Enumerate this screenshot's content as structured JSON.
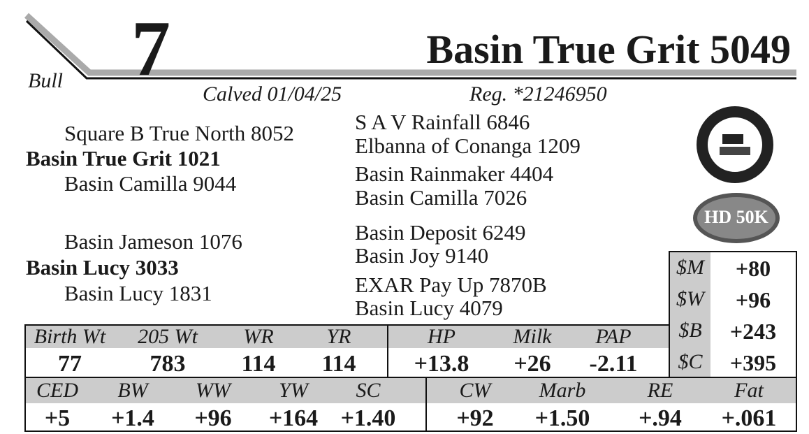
{
  "header": {
    "lot": "7",
    "name": "Basin True Grit 5049",
    "sex": "Bull",
    "calved": "Calved 01/04/25",
    "reg": "Reg. *21246950"
  },
  "pedigree": {
    "sire": "Basin True Grit 1021",
    "sire_sire": "Square B True North 8052",
    "sire_dam": "Basin Camilla 9044",
    "dam": "Basin Lucy 3033",
    "dam_sire": "Basin Jameson 1076",
    "dam_dam": "Basin Lucy 1831",
    "ancestors": [
      "S A V Rainfall 6846",
      "Elbanna of Conanga 1209",
      "Basin Rainmaker 4404",
      "Basin Camilla 7026",
      "Basin Deposit 6249",
      "Basin Joy 9140",
      "EXAR Pay Up 7870B",
      "Basin Lucy 4079"
    ]
  },
  "badges": {
    "genomic": "HD 50K"
  },
  "indexes": {
    "rows": [
      [
        "$M",
        "+80"
      ],
      [
        "$W",
        "+96"
      ],
      [
        "$B",
        "+243"
      ],
      [
        "$C",
        "+395"
      ]
    ]
  },
  "epd_top": {
    "headers": [
      "Birth Wt",
      "205 Wt",
      "WR",
      "YR",
      "HP",
      "Milk",
      "PAP"
    ],
    "values": [
      "77",
      "783",
      "114",
      "114",
      "+13.8",
      "+26",
      "-2.11"
    ]
  },
  "epd_bottom": {
    "headers": [
      "CED",
      "BW",
      "WW",
      "YW",
      "SC",
      "CW",
      "Marb",
      "RE",
      "Fat"
    ],
    "values": [
      "+5",
      "+1.4",
      "+96",
      "+164",
      "+1.40",
      "+92",
      "+1.50",
      "+.94",
      "+.061"
    ]
  }
}
